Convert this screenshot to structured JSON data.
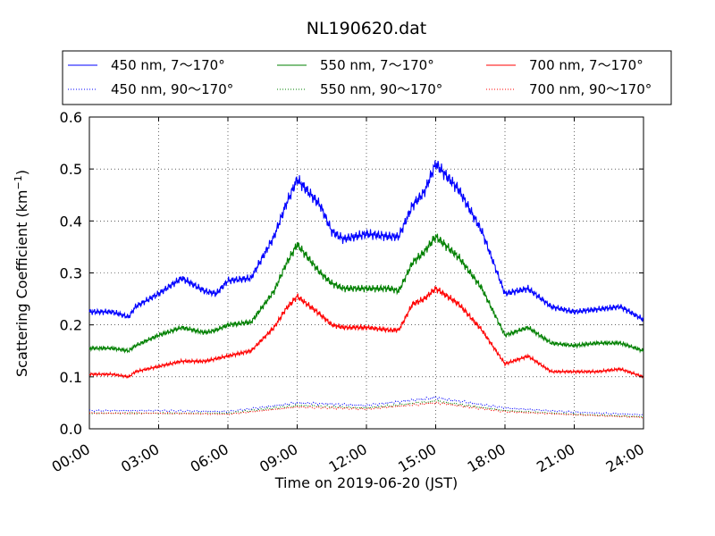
{
  "chart_data": {
    "type": "line",
    "title": "NL190620.dat",
    "xlabel": "Time on 2019-06-20 (JST)",
    "ylabel": "Scattering Coefficient (km",
    "ylabel_exponent": "−1",
    "ylabel_close": ")",
    "xlim": [
      0,
      24
    ],
    "ylim": [
      0,
      0.6
    ],
    "grid": true,
    "legend_position": "top",
    "x_tick_labels": [
      "00:00",
      "03:00",
      "06:00",
      "09:00",
      "12:00",
      "15:00",
      "18:00",
      "21:00",
      "24:00"
    ],
    "x_ticks": [
      0,
      3,
      6,
      9,
      12,
      15,
      18,
      21,
      24
    ],
    "y_tick_labels": [
      "0.0",
      "0.1",
      "0.2",
      "0.3",
      "0.4",
      "0.5",
      "0.6"
    ],
    "y_ticks": [
      0,
      0.1,
      0.2,
      0.3,
      0.4,
      0.5,
      0.6
    ],
    "series": [
      {
        "name": "450 nm, 7～170°",
        "color": "#0000ff",
        "style": "solid",
        "x": [
          0,
          1,
          1.7,
          2,
          3,
          4,
          5,
          5.5,
          6,
          7,
          8,
          8.5,
          9,
          10,
          10.5,
          11,
          12,
          13,
          13.4,
          14,
          14.5,
          15,
          16,
          17,
          18,
          19,
          20,
          21,
          22,
          23,
          24
        ],
        "values": [
          0.225,
          0.225,
          0.215,
          0.235,
          0.26,
          0.29,
          0.265,
          0.26,
          0.285,
          0.29,
          0.37,
          0.43,
          0.48,
          0.43,
          0.38,
          0.365,
          0.375,
          0.37,
          0.37,
          0.43,
          0.455,
          0.51,
          0.46,
          0.38,
          0.26,
          0.27,
          0.235,
          0.225,
          0.23,
          0.235,
          0.21
        ]
      },
      {
        "name": "450 nm, 90～170°",
        "color": "#0000ff",
        "style": "dotted",
        "x": [
          0,
          3,
          6,
          9,
          12,
          15,
          18,
          21,
          24
        ],
        "values": [
          0.035,
          0.035,
          0.033,
          0.05,
          0.045,
          0.06,
          0.04,
          0.032,
          0.027
        ]
      },
      {
        "name": "550 nm, 7～170°",
        "color": "#008000",
        "style": "solid",
        "x": [
          0,
          1,
          1.7,
          2,
          3,
          4,
          5,
          5.5,
          6,
          7,
          8,
          8.5,
          9,
          10,
          10.5,
          11,
          12,
          13,
          13.4,
          14,
          14.5,
          15,
          16,
          17,
          18,
          19,
          20,
          21,
          22,
          23,
          24
        ],
        "values": [
          0.155,
          0.155,
          0.15,
          0.16,
          0.18,
          0.195,
          0.185,
          0.19,
          0.2,
          0.205,
          0.265,
          0.315,
          0.355,
          0.3,
          0.28,
          0.27,
          0.27,
          0.27,
          0.265,
          0.32,
          0.34,
          0.37,
          0.33,
          0.27,
          0.18,
          0.195,
          0.165,
          0.16,
          0.165,
          0.165,
          0.15
        ]
      },
      {
        "name": "550 nm, 90～170°",
        "color": "#008000",
        "style": "dotted",
        "x": [
          0,
          3,
          6,
          9,
          12,
          15,
          18,
          21,
          24
        ],
        "values": [
          0.03,
          0.03,
          0.03,
          0.045,
          0.04,
          0.053,
          0.035,
          0.028,
          0.023
        ]
      },
      {
        "name": "700 nm, 7～170°",
        "color": "#ff0000",
        "style": "solid",
        "x": [
          0,
          1,
          1.7,
          2,
          3,
          4,
          5,
          5.5,
          6,
          7,
          8,
          8.5,
          9,
          10,
          10.5,
          11,
          12,
          13,
          13.4,
          14,
          14.5,
          15,
          16,
          17,
          18,
          19,
          20,
          21,
          22,
          23,
          24
        ],
        "values": [
          0.105,
          0.105,
          0.1,
          0.11,
          0.12,
          0.13,
          0.13,
          0.135,
          0.14,
          0.15,
          0.195,
          0.23,
          0.255,
          0.22,
          0.2,
          0.195,
          0.195,
          0.19,
          0.19,
          0.24,
          0.25,
          0.27,
          0.24,
          0.19,
          0.125,
          0.14,
          0.11,
          0.11,
          0.11,
          0.115,
          0.1
        ]
      },
      {
        "name": "700 nm, 90～170°",
        "color": "#ff0000",
        "style": "dotted",
        "x": [
          0,
          3,
          6,
          9,
          12,
          15,
          18,
          21,
          24
        ],
        "values": [
          0.03,
          0.03,
          0.028,
          0.042,
          0.038,
          0.05,
          0.033,
          0.027,
          0.022
        ]
      }
    ]
  }
}
